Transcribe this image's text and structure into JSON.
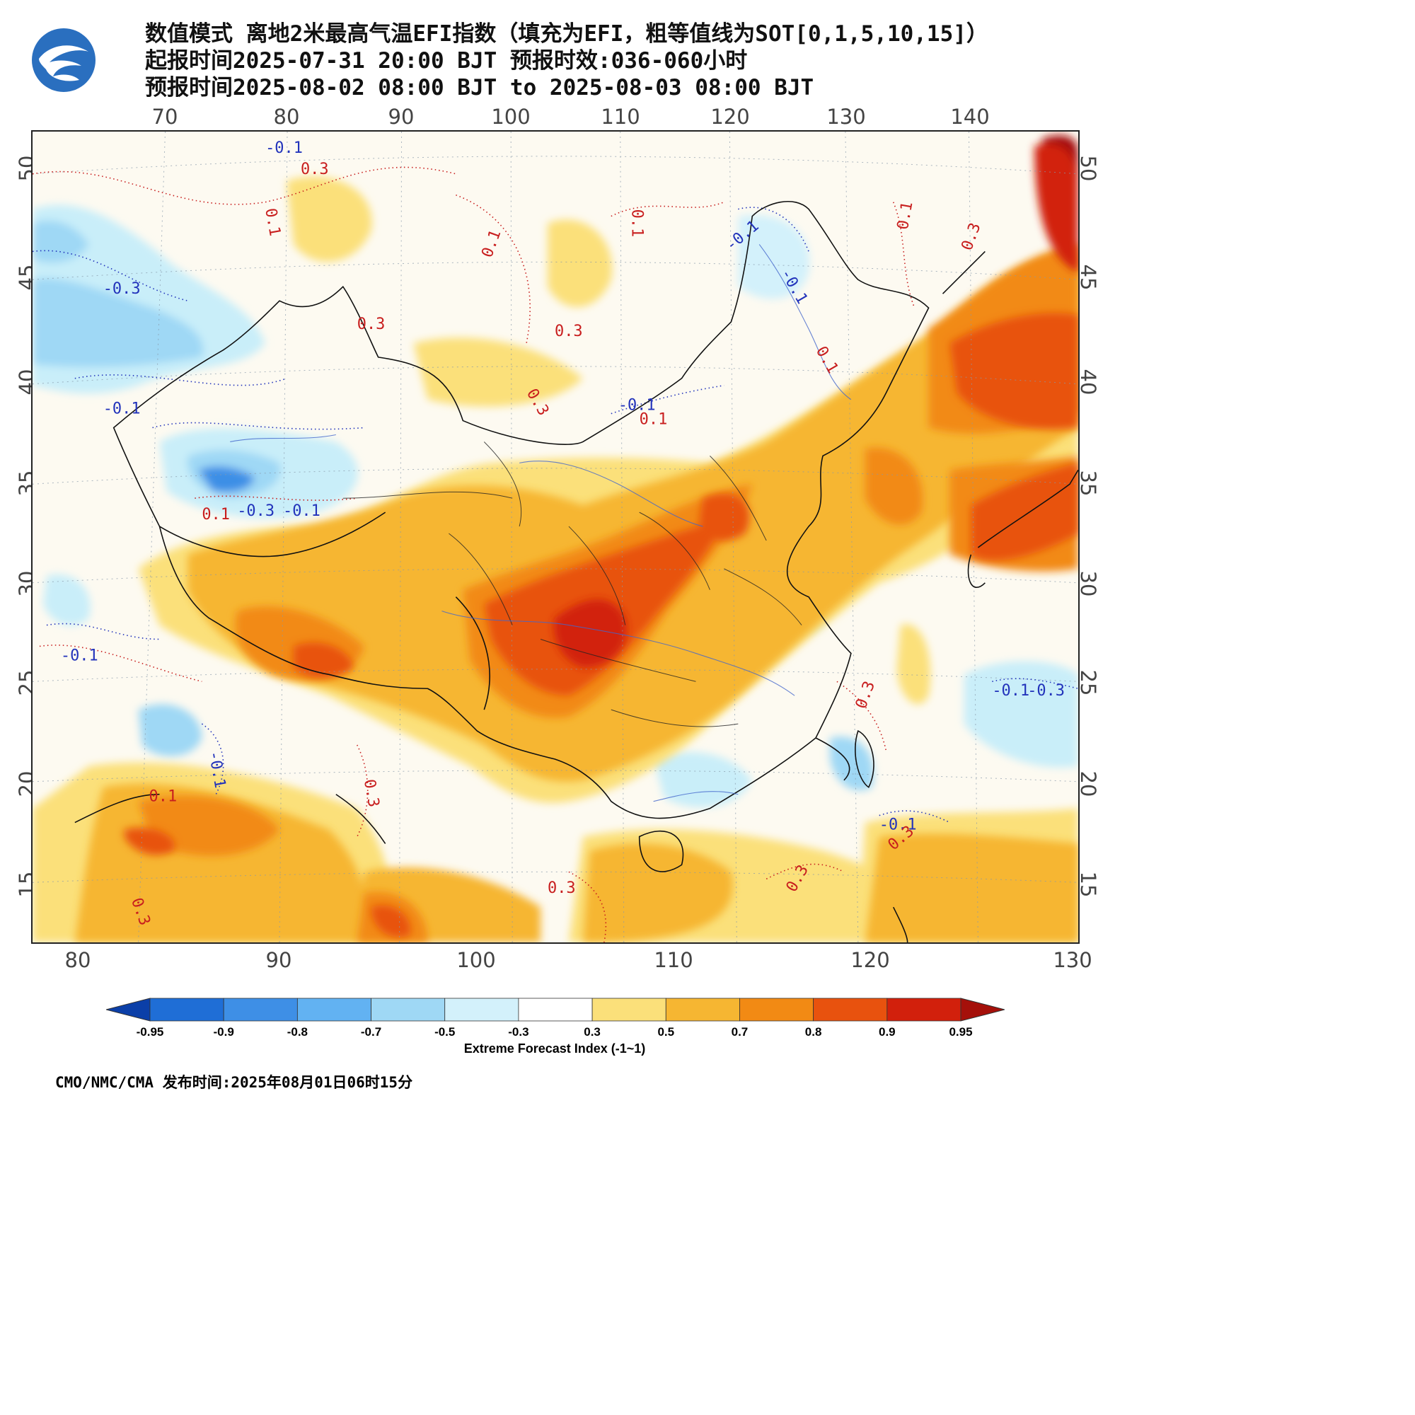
{
  "title": {
    "line1": "数值模式 离地2米最高气温EFI指数（填充为EFI，粗等值线为SOT[0,1,5,10,15]）",
    "line2": "起报时间2025-07-31 20:00 BJT 预报时效:036-060小时",
    "line3": "预报时间2025-08-02 08:00 BJT to 2025-08-03 08:00 BJT"
  },
  "axes": {
    "top_ticks": [
      "70",
      "80",
      "90",
      "100",
      "110",
      "120",
      "130",
      "140"
    ],
    "bottom_ticks": [
      "80",
      "90",
      "100",
      "110",
      "120",
      "130"
    ],
    "left_ticks": [
      "50",
      "45",
      "40",
      "35",
      "30",
      "25",
      "20",
      "15"
    ],
    "right_ticks": [
      "50",
      "45",
      "40",
      "35",
      "30",
      "25",
      "20",
      "15"
    ]
  },
  "colorbar": {
    "title": "Extreme Forecast Index (-1~1)",
    "labels": [
      "-0.95",
      "-0.9",
      "-0.8",
      "-0.7",
      "-0.5",
      "-0.3",
      "0.3",
      "0.5",
      "0.7",
      "0.8",
      "0.9",
      "0.95"
    ],
    "colors": [
      "#0b3fa8",
      "#1f6ed6",
      "#3e8fe6",
      "#62b2f2",
      "#9fd8f5",
      "#d3f1fb",
      "#ffffff",
      "#fbe07a",
      "#f6b632",
      "#f28a14",
      "#e8520e",
      "#d2200c",
      "#a5100a"
    ]
  },
  "contour_labels": [
    "0.1",
    "0.3",
    "-0.1",
    "-0.3"
  ],
  "footer": "CMO/NMC/CMA 发布时间:2025年08月01日06时15分"
}
